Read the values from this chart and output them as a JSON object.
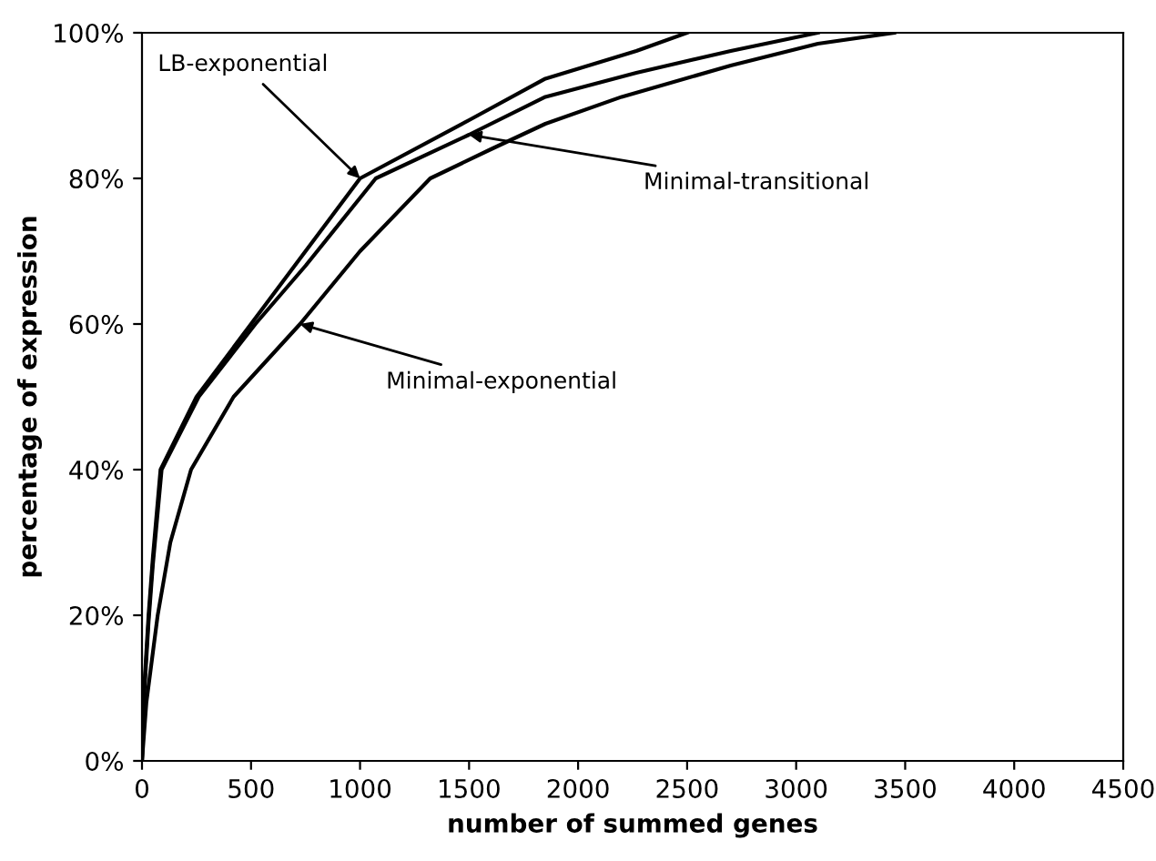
{
  "chart_data": {
    "type": "line",
    "xlabel": "number of summed genes",
    "ylabel": "percentage of expression",
    "xlim": [
      0,
      4500
    ],
    "xticks": [
      0,
      500,
      1000,
      1500,
      2000,
      2500,
      3000,
      3500,
      4000,
      4500
    ],
    "ylim": [
      0,
      100
    ],
    "yticks": [
      {
        "value": 0,
        "label": "0%"
      },
      {
        "value": 20,
        "label": "20%"
      },
      {
        "value": 40,
        "label": "40%"
      },
      {
        "value": 60,
        "label": "60%"
      },
      {
        "value": 80,
        "label": "80%"
      },
      {
        "value": 100,
        "label": "100%"
      }
    ],
    "grid": false,
    "marker": "none",
    "line_style": "solid",
    "series": [
      {
        "color": "#000000",
        "x": [
          0,
          10,
          30,
          50,
          85,
          250,
          500,
          700,
          1000,
          1500,
          1850,
          2267,
          2500
        ],
        "values": [
          0,
          10,
          20,
          28,
          40,
          50,
          60,
          68,
          80,
          88,
          93.7,
          97.5,
          100
        ]
      },
      {
        "color": "#000000",
        "x": [
          0,
          10,
          30,
          50,
          90,
          260,
          520,
          750,
          1072,
          1500,
          1850,
          2267,
          2700,
          3100
        ],
        "values": [
          0,
          9,
          19,
          27,
          40,
          50,
          60,
          68,
          80,
          86,
          91.2,
          94.5,
          97.5,
          100
        ]
      },
      {
        "color": "#000000",
        "x": [
          0,
          20,
          72,
          130,
          225,
          420,
          725,
          1000,
          1322,
          1600,
          1850,
          2200,
          2700,
          3100,
          3450
        ],
        "values": [
          0,
          8,
          20,
          30,
          40,
          50,
          60,
          70,
          80,
          84,
          87.5,
          91.2,
          95.5,
          98.5,
          100
        ]
      }
    ],
    "annotations": [
      {
        "text": "LB-exponential",
        "x": 1000,
        "y": 80
      },
      {
        "text": "Minimal-transitional",
        "x": 1500,
        "y": 86
      },
      {
        "text": "Minimal-exponential",
        "x": 725,
        "y": 60
      }
    ]
  }
}
